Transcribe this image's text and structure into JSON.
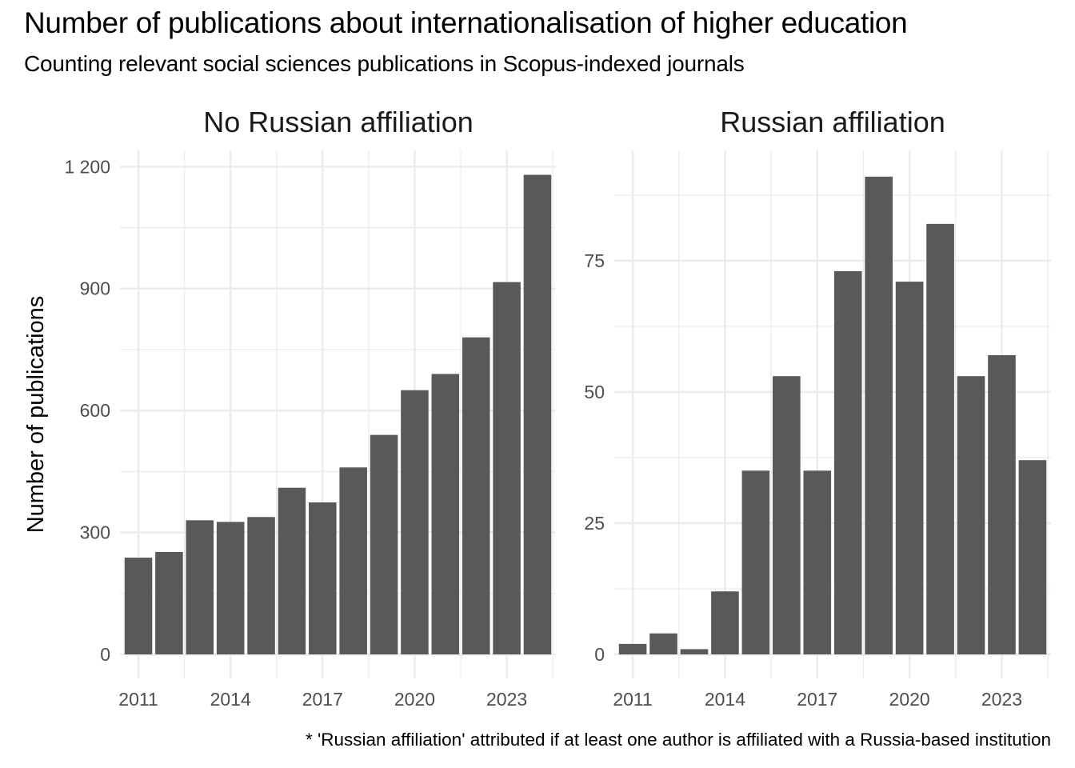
{
  "title": "Number of publications about internationalisation of higher education",
  "subtitle": "Counting relevant social sciences publications in Scopus-indexed journals",
  "caption": "* 'Russian affiliation' attributed if at least one author is affiliated with a Russia-based institution",
  "colors": {
    "bar": "#595959",
    "grid": "#ebebeb",
    "background": "#ffffff"
  },
  "chart_data": [
    {
      "type": "bar",
      "title": "No Russian affiliation",
      "ylabel": "Number of publications",
      "xlabel": "",
      "x": [
        2011,
        2012,
        2013,
        2014,
        2015,
        2016,
        2017,
        2018,
        2019,
        2020,
        2021,
        2022,
        2023,
        2024
      ],
      "values": [
        238,
        252,
        330,
        326,
        338,
        410,
        374,
        460,
        540,
        650,
        690,
        780,
        916,
        1180
      ],
      "ylim": [
        0,
        1240
      ],
      "yticks": [
        0,
        300,
        600,
        900,
        1200
      ],
      "ytick_labels": [
        "0",
        "300",
        "600",
        "900",
        "1 200"
      ],
      "xticks": [
        2011,
        2014,
        2017,
        2020,
        2023
      ],
      "xtick_labels": [
        "2011",
        "2014",
        "2017",
        "2020",
        "2023"
      ],
      "grid": true
    },
    {
      "type": "bar",
      "title": "Russian affiliation",
      "ylabel": "",
      "xlabel": "",
      "x": [
        2011,
        2012,
        2013,
        2014,
        2015,
        2016,
        2017,
        2018,
        2019,
        2020,
        2021,
        2022,
        2023,
        2024
      ],
      "values": [
        2,
        4,
        1,
        12,
        35,
        53,
        35,
        73,
        91,
        71,
        82,
        53,
        57,
        37
      ],
      "ylim": [
        0,
        96
      ],
      "yticks": [
        0,
        25,
        50,
        75
      ],
      "ytick_labels": [
        "0",
        "25",
        "50",
        "75"
      ],
      "xticks": [
        2011,
        2014,
        2017,
        2020,
        2023
      ],
      "xtick_labels": [
        "2011",
        "2014",
        "2017",
        "2020",
        "2023"
      ],
      "grid": true
    }
  ]
}
